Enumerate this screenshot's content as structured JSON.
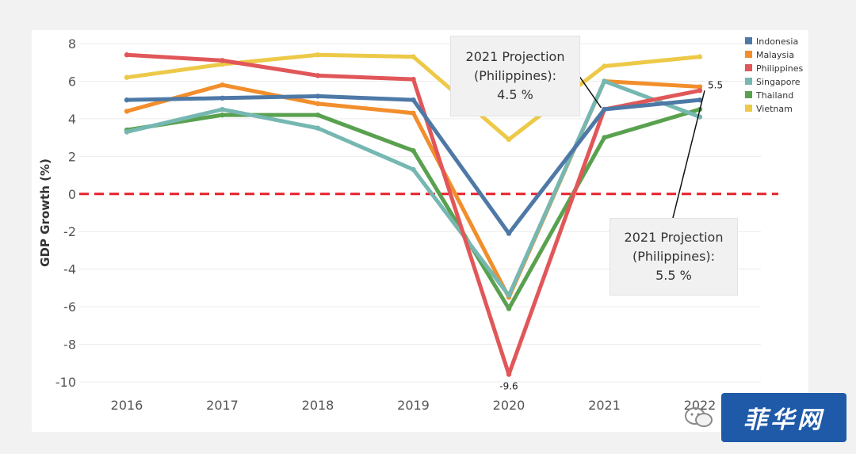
{
  "chart_data": {
    "type": "line",
    "title": "",
    "xlabel": "",
    "ylabel": "GDP Growth (%)",
    "x": [
      "2016",
      "2017",
      "2018",
      "2019",
      "2020",
      "2021",
      "2022"
    ],
    "ylim": [
      -10,
      8
    ],
    "yticks": [
      "8",
      "6",
      "4",
      "2",
      "0",
      "-2",
      "-4",
      "-6",
      "-8",
      "-10"
    ],
    "ytick_values": [
      8,
      6,
      4,
      2,
      0,
      -2,
      -4,
      -6,
      -8,
      -10
    ],
    "legend_position": "top-right",
    "reference_line": {
      "y": 0,
      "color": "#e8202a",
      "style": "dashed"
    },
    "series": [
      {
        "name": "Indonesia",
        "color": "#4e79a7",
        "values": [
          5.0,
          5.1,
          5.2,
          5.0,
          -2.1,
          4.5,
          5.0
        ]
      },
      {
        "name": "Malaysia",
        "color": "#f28e2b",
        "values": [
          4.4,
          5.8,
          4.8,
          4.3,
          -5.5,
          6.0,
          5.7
        ]
      },
      {
        "name": "Philippines",
        "color": "#e15759",
        "values": [
          7.4,
          7.1,
          6.3,
          6.1,
          -9.6,
          4.5,
          5.5
        ]
      },
      {
        "name": "Singapore",
        "color": "#76b7b2",
        "values": [
          3.3,
          4.5,
          3.5,
          1.3,
          -5.4,
          6.0,
          4.1
        ]
      },
      {
        "name": "Thailand",
        "color": "#59a14f",
        "values": [
          3.4,
          4.2,
          4.2,
          2.3,
          -6.1,
          3.0,
          4.5
        ]
      },
      {
        "name": "Vietnam",
        "color": "#edc948",
        "values": [
          6.2,
          6.9,
          7.4,
          7.3,
          2.9,
          6.8,
          7.3
        ]
      }
    ],
    "data_labels": [
      {
        "text": "-9.6",
        "series": "Philippines",
        "x": "2020"
      },
      {
        "text": "5.5",
        "series": "Philippines",
        "x": "2022"
      }
    ],
    "annotations": [
      {
        "lines": [
          "2021 Projection",
          "(Philippines):",
          "4.5 %"
        ],
        "target_x": "2021",
        "target_y": 4.5
      },
      {
        "lines": [
          "2021 Projection",
          "(Philippines):",
          "5.5 %"
        ],
        "target_x": "2022",
        "target_y": 5.5
      }
    ]
  },
  "watermark": {
    "text": "菲华网",
    "icon": "wechat-icon"
  }
}
